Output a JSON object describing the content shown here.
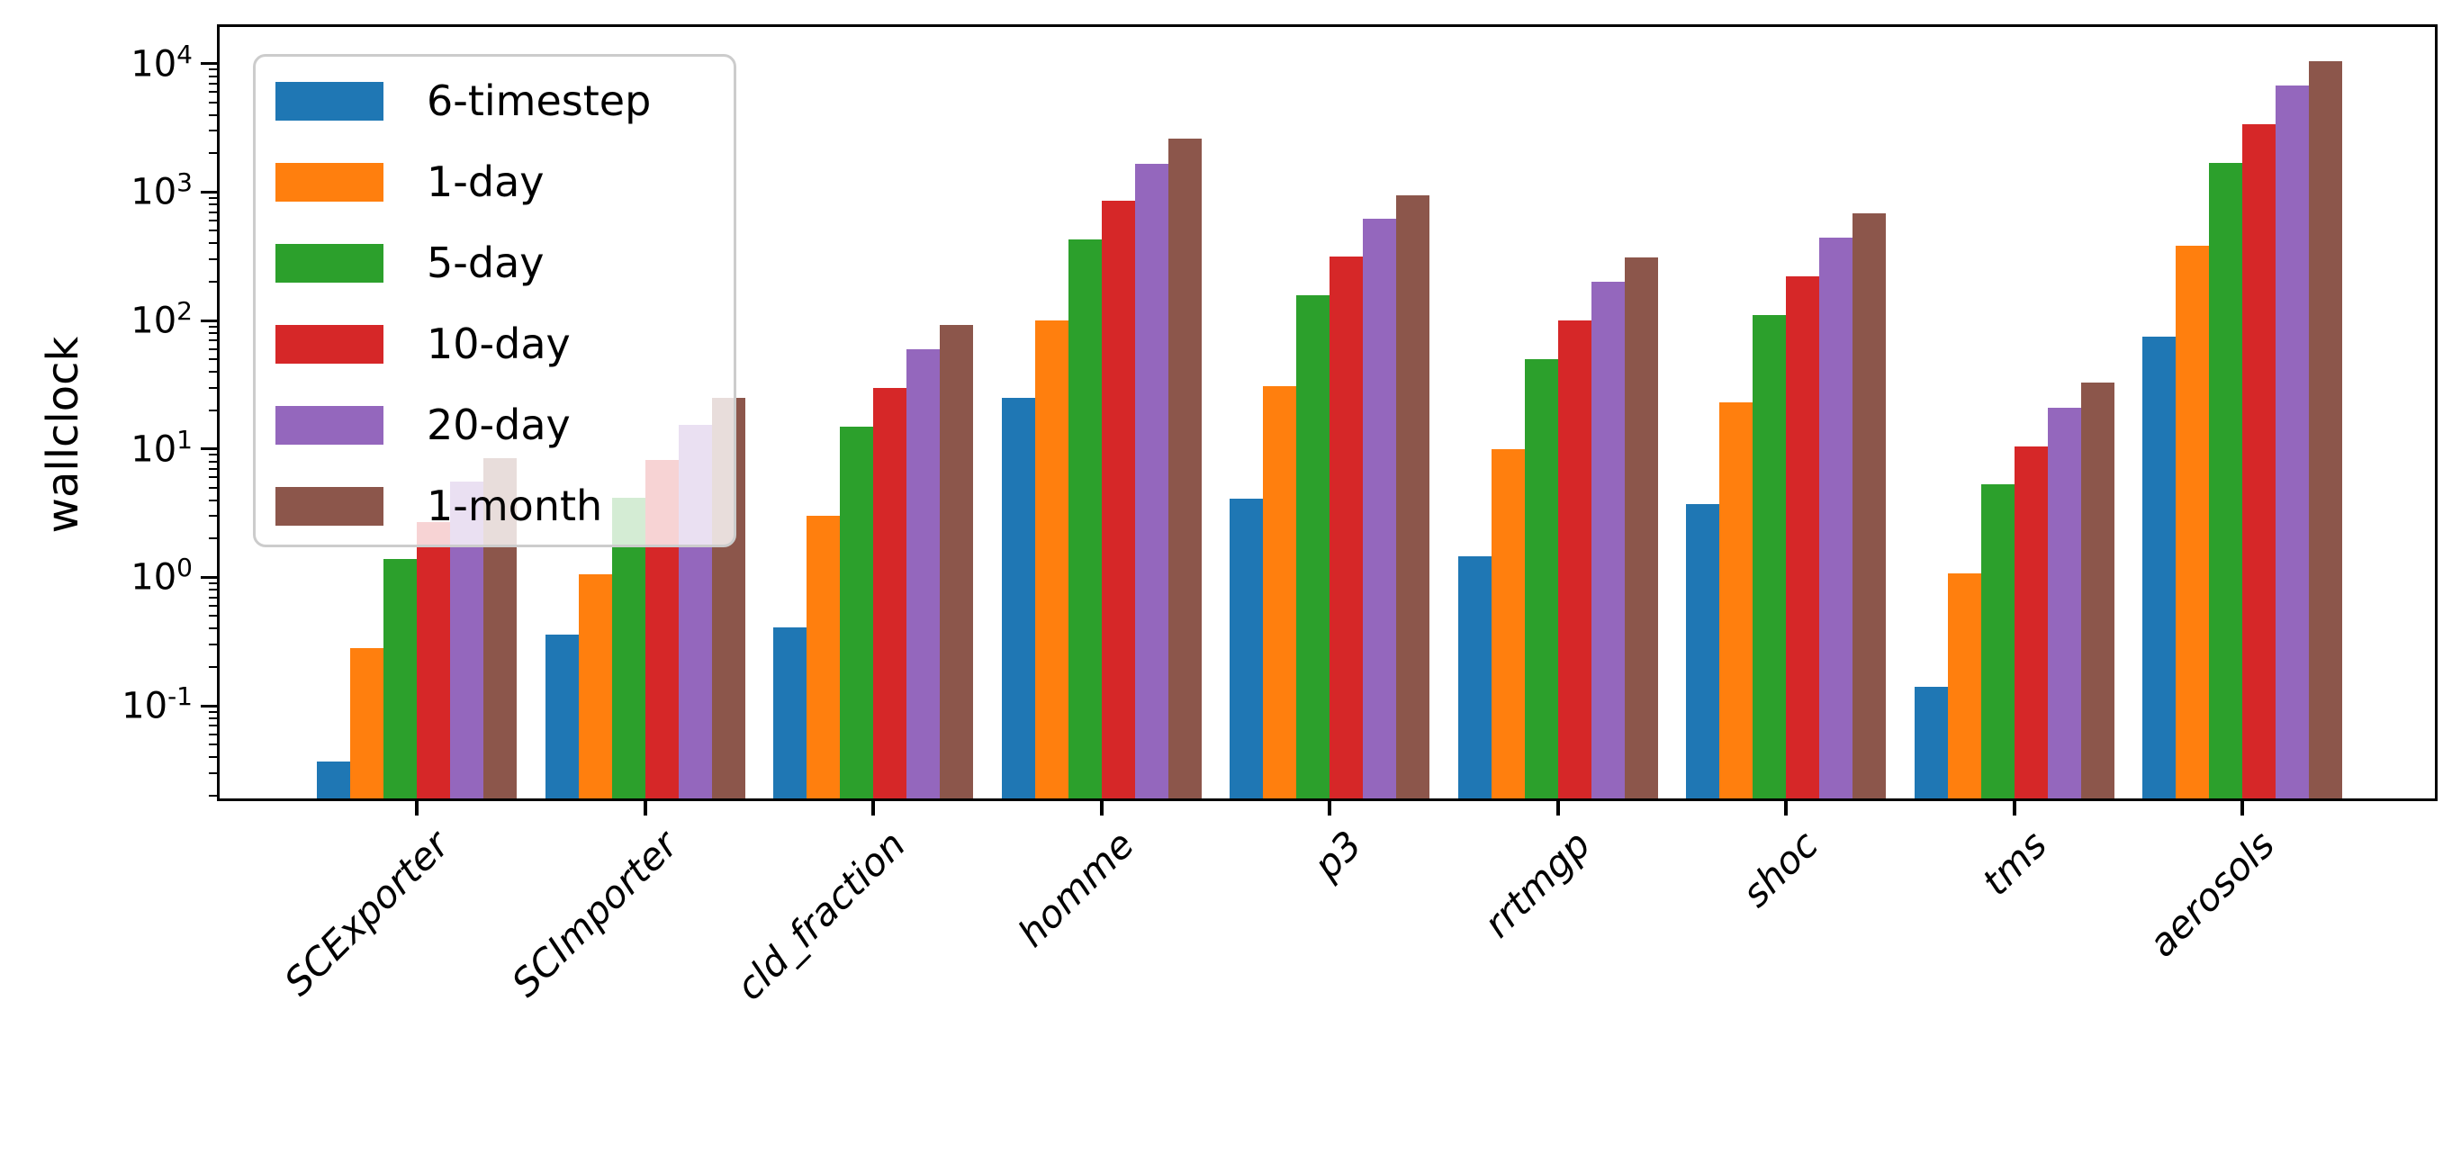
{
  "chart_data": {
    "type": "bar",
    "title": "",
    "xlabel": "",
    "ylabel": "wallclock",
    "y_scale": "log",
    "ylim": [
      0.019,
      19300
    ],
    "ytick_exponents": [
      4,
      3,
      2,
      1,
      0,
      -1
    ],
    "grid": false,
    "legend_position": "upper left",
    "categories": [
      "SCExporter",
      "SCImporter",
      "cld_fraction",
      "homme",
      "p3",
      "rrtmgp",
      "shoc",
      "tms",
      "aerosols"
    ],
    "series": [
      {
        "name": "6-timestep",
        "color": "#1f77b4",
        "values": [
          0.037,
          0.36,
          0.41,
          25,
          4.1,
          1.45,
          3.7,
          0.14,
          75
        ]
      },
      {
        "name": "1-day",
        "color": "#ff7f0e",
        "values": [
          0.28,
          1.05,
          3.0,
          100,
          31,
          10,
          23,
          1.08,
          380
        ]
      },
      {
        "name": "5-day",
        "color": "#2ca02c",
        "values": [
          1.4,
          4.2,
          15,
          430,
          158,
          50,
          110,
          5.3,
          1700
        ]
      },
      {
        "name": "10-day",
        "color": "#d62728",
        "values": [
          2.7,
          8.2,
          30,
          850,
          315,
          100,
          220,
          10.5,
          3400
        ]
      },
      {
        "name": "20-day",
        "color": "#9467bd",
        "values": [
          5.6,
          15.5,
          60,
          1650,
          620,
          200,
          440,
          21,
          6800
        ]
      },
      {
        "name": "1-month",
        "color": "#8c564b",
        "values": [
          8.5,
          25,
          93,
          2600,
          950,
          310,
          680,
          33,
          10500
        ]
      }
    ]
  }
}
